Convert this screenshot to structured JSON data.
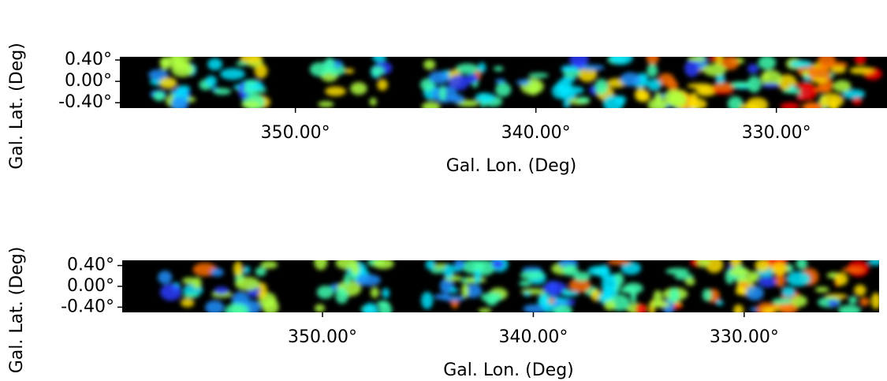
{
  "chart_data": [
    {
      "type": "heatmap",
      "xlabel": "Gal. Lon. (Deg)",
      "ylabel": "Gal. Lat. (Deg)",
      "xlim": [
        357.3,
        325.4
      ],
      "ylim": [
        -0.5,
        0.46
      ],
      "xticks": [
        {
          "value": 350,
          "label": "350.00°"
        },
        {
          "value": 340,
          "label": "340.00°"
        },
        {
          "value": 330,
          "label": "330.00°"
        }
      ],
      "yticks": [
        {
          "value": 0.4,
          "label": "0.40°"
        },
        {
          "value": 0,
          "label": "0.00°"
        },
        {
          "value": -0.4,
          "label": "-0.40°"
        }
      ]
    },
    {
      "type": "heatmap",
      "xlabel": "Gal. Lon. (Deg)",
      "ylabel": "Gal. Lat. (Deg)",
      "xlim": [
        359.5,
        323.6
      ],
      "ylim": [
        -0.5,
        0.5
      ],
      "xticks": [
        {
          "value": 350,
          "label": "350.00°"
        },
        {
          "value": 340,
          "label": "340.00°"
        },
        {
          "value": 330,
          "label": "330.00°"
        }
      ],
      "yticks": [
        {
          "value": 0.4,
          "label": "0.40°"
        },
        {
          "value": 0,
          "label": "0.00°"
        },
        {
          "value": -0.4,
          "label": "-0.40°"
        }
      ]
    }
  ]
}
